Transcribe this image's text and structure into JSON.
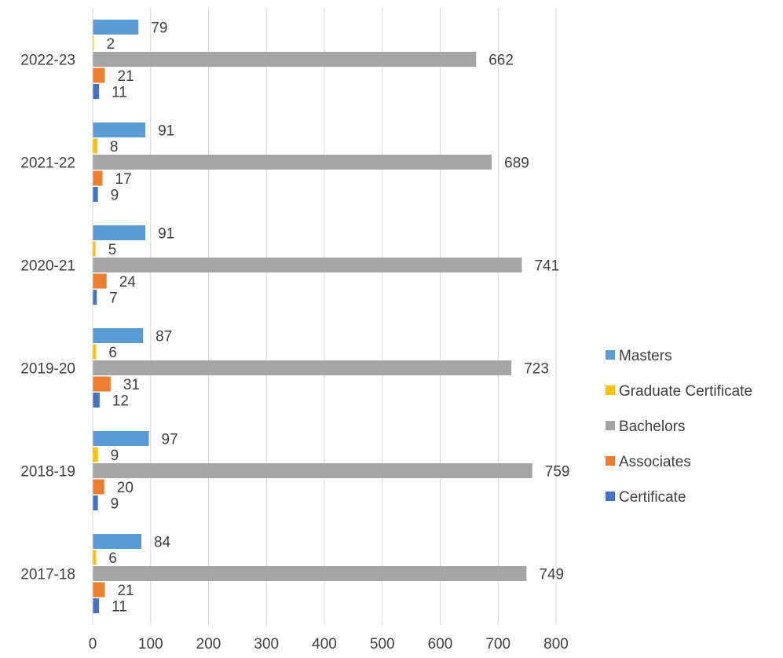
{
  "chart_data": {
    "type": "bar",
    "orientation": "horizontal",
    "categories": [
      "2017-18",
      "2018-19",
      "2019-20",
      "2020-21",
      "2021-22",
      "2022-23"
    ],
    "series": [
      {
        "name": "Certificate",
        "color": "#4472C4",
        "values": [
          11,
          9,
          12,
          7,
          9,
          11
        ]
      },
      {
        "name": "Associates",
        "color": "#ED7D31",
        "values": [
          21,
          20,
          31,
          24,
          17,
          21
        ]
      },
      {
        "name": "Bachelors",
        "color": "#A5A5A5",
        "values": [
          749,
          759,
          723,
          741,
          689,
          662
        ]
      },
      {
        "name": "Graduate Certificate",
        "color": "#FFC000",
        "values": [
          6,
          9,
          6,
          5,
          8,
          2
        ]
      },
      {
        "name": "Masters",
        "color": "#5B9BD5",
        "values": [
          84,
          97,
          87,
          91,
          91,
          79
        ]
      }
    ],
    "xlim": [
      0,
      800
    ],
    "xticks": [
      0,
      100,
      200,
      300,
      400,
      500,
      600,
      700,
      800
    ],
    "title": "",
    "xlabel": "",
    "ylabel": "",
    "grid": "vertical",
    "data_labels": true,
    "legend": {
      "position": "right",
      "order": [
        "Masters",
        "Graduate Certificate",
        "Bachelors",
        "Associates",
        "Certificate"
      ]
    }
  }
}
